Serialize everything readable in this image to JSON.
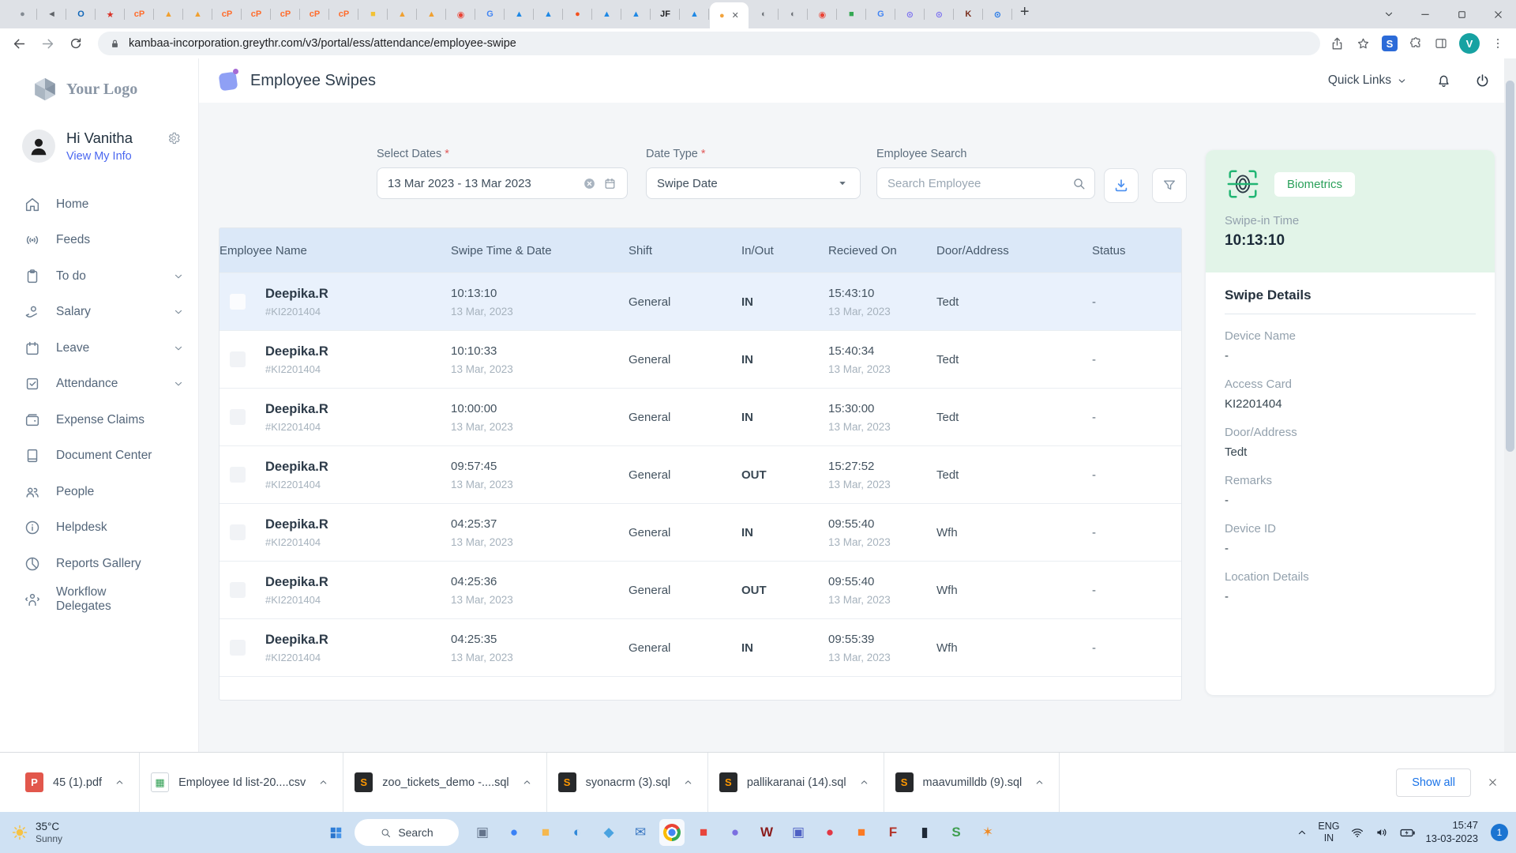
{
  "browser": {
    "url": "kambaa-incorporation.greythr.com/v3/portal/ess/attendance/employee-swipe",
    "avatar": "V",
    "new_tab": "+",
    "favicons_before": [
      {
        "n": "sphere-tab",
        "g": "●",
        "c": "#848b93"
      },
      {
        "n": "volume-tab",
        "g": "◄",
        "c": "#5f6368"
      },
      {
        "n": "outlook-tab",
        "g": "O",
        "c": "#1066b8"
      },
      {
        "n": "ticket-tab",
        "g": "★",
        "c": "#d93025"
      },
      {
        "n": "cpanel-tab",
        "g": "cP",
        "c": "#ff6c2c"
      },
      {
        "n": "phpmyadmin-tab",
        "g": "▲",
        "c": "#f0a030"
      },
      {
        "n": "phpmyadmin-tab",
        "g": "▲",
        "c": "#f0a030"
      },
      {
        "n": "cpanel-tab",
        "g": "cP",
        "c": "#ff6c2c"
      },
      {
        "n": "cpanel-tab",
        "g": "cP",
        "c": "#ff6c2c"
      },
      {
        "n": "cpanel-tab",
        "g": "cP",
        "c": "#ff6c2c"
      },
      {
        "n": "cpanel-tab",
        "g": "cP",
        "c": "#ff6c2c"
      },
      {
        "n": "cpanel-tab",
        "g": "cP",
        "c": "#ff6c2c"
      },
      {
        "n": "cube-tab",
        "g": "■",
        "c": "#f2c235"
      },
      {
        "n": "phpmyadmin-tab",
        "g": "▲",
        "c": "#f0a030"
      },
      {
        "n": "phpmyadmin-tab",
        "g": "▲",
        "c": "#f0a030"
      },
      {
        "n": "maps-tab",
        "g": "◉",
        "c": "#ea4335"
      },
      {
        "n": "google-tab",
        "g": "G",
        "c": "#4285f4"
      },
      {
        "n": "greythr-tab",
        "g": "▲",
        "c": "#1e88e5"
      },
      {
        "n": "greythr-tab",
        "g": "▲",
        "c": "#1e88e5"
      },
      {
        "n": "zoho-tab",
        "g": "●",
        "c": "#f4511e"
      },
      {
        "n": "greythr-tab",
        "g": "▲",
        "c": "#1e88e5"
      },
      {
        "n": "greythr-tab",
        "g": "▲",
        "c": "#1e88e5"
      },
      {
        "n": "jf-tab",
        "g": "JF",
        "c": "#202124"
      },
      {
        "n": "greythr-tab",
        "g": "▲",
        "c": "#1e88e5"
      }
    ],
    "active_tab_favicon": {
      "n": "greythr-active-tab",
      "g": "●",
      "c": "#f2a33c"
    },
    "active_tab_close": "✕",
    "favicons_after": [
      {
        "n": "globe-tab",
        "g": "◐",
        "c": "#6d7278"
      },
      {
        "n": "globe-tab",
        "g": "◐",
        "c": "#6d7278"
      },
      {
        "n": "maps-tab",
        "g": "◉",
        "c": "#ea4335"
      },
      {
        "n": "chat-tab",
        "g": "■",
        "c": "#34a853"
      },
      {
        "n": "google-tab",
        "g": "G",
        "c": "#4285f4"
      },
      {
        "n": "sync-tab",
        "g": "⊙",
        "c": "#7a6ff0"
      },
      {
        "n": "sync-tab",
        "g": "⊙",
        "c": "#7a6ff0"
      },
      {
        "n": "k-tab",
        "g": "K",
        "c": "#7a2e1d"
      },
      {
        "n": "clock-tab",
        "g": "⊙",
        "c": "#1a73e8"
      }
    ],
    "ext_badge": "S"
  },
  "header": {
    "title": "Employee Swipes",
    "quick_links": "Quick Links"
  },
  "sidebar": {
    "logo_text": "Your Logo",
    "greeting": "Hi Vanitha",
    "view_my_info": "View My Info",
    "items": [
      {
        "label": "Home",
        "icon": "home",
        "expandable": false
      },
      {
        "label": "Feeds",
        "icon": "feeds",
        "expandable": false
      },
      {
        "label": "To do",
        "icon": "todo",
        "expandable": true
      },
      {
        "label": "Salary",
        "icon": "salary",
        "expandable": true
      },
      {
        "label": "Leave",
        "icon": "leave",
        "expandable": true
      },
      {
        "label": "Attendance",
        "icon": "attendance",
        "expandable": true
      },
      {
        "label": "Expense Claims",
        "icon": "expense",
        "expandable": false
      },
      {
        "label": "Document Center",
        "icon": "document",
        "expandable": false
      },
      {
        "label": "People",
        "icon": "people",
        "expandable": false
      },
      {
        "label": "Helpdesk",
        "icon": "helpdesk",
        "expandable": false
      },
      {
        "label": "Reports Gallery",
        "icon": "reports",
        "expandable": false
      },
      {
        "label": "Workflow Delegates",
        "icon": "workflow",
        "expandable": false
      }
    ]
  },
  "filters": {
    "select_dates_label": "Select Dates",
    "select_dates_value": "13 Mar 2023 - 13 Mar 2023",
    "date_type_label": "Date Type",
    "date_type_value": "Swipe Date",
    "employee_search_label": "Employee Search",
    "employee_search_placeholder": "Search Employee",
    "required_mark": "*"
  },
  "table": {
    "columns": [
      "Employee Name",
      "Swipe Time & Date",
      "Shift",
      "In/Out",
      "Recieved On",
      "Door/Address",
      "Status"
    ],
    "rows": [
      {
        "name": "Deepika.R",
        "emp_id": "#KI2201404",
        "swipe_time": "10:13:10",
        "swipe_date": "13 Mar, 2023",
        "shift": "General",
        "in_out": "IN",
        "received_time": "15:43:10",
        "received_date": "13 Mar, 2023",
        "door": "Tedt",
        "status": "-",
        "highlighted": true
      },
      {
        "name": "Deepika.R",
        "emp_id": "#KI2201404",
        "swipe_time": "10:10:33",
        "swipe_date": "13 Mar, 2023",
        "shift": "General",
        "in_out": "IN",
        "received_time": "15:40:34",
        "received_date": "13 Mar, 2023",
        "door": "Tedt",
        "status": "-",
        "highlighted": false
      },
      {
        "name": "Deepika.R",
        "emp_id": "#KI2201404",
        "swipe_time": "10:00:00",
        "swipe_date": "13 Mar, 2023",
        "shift": "General",
        "in_out": "IN",
        "received_time": "15:30:00",
        "received_date": "13 Mar, 2023",
        "door": "Tedt",
        "status": "-",
        "highlighted": false
      },
      {
        "name": "Deepika.R",
        "emp_id": "#KI2201404",
        "swipe_time": "09:57:45",
        "swipe_date": "13 Mar, 2023",
        "shift": "General",
        "in_out": "OUT",
        "received_time": "15:27:52",
        "received_date": "13 Mar, 2023",
        "door": "Tedt",
        "status": "-",
        "highlighted": false
      },
      {
        "name": "Deepika.R",
        "emp_id": "#KI2201404",
        "swipe_time": "04:25:37",
        "swipe_date": "13 Mar, 2023",
        "shift": "General",
        "in_out": "IN",
        "received_time": "09:55:40",
        "received_date": "13 Mar, 2023",
        "door": "Wfh",
        "status": "-",
        "highlighted": false
      },
      {
        "name": "Deepika.R",
        "emp_id": "#KI2201404",
        "swipe_time": "04:25:36",
        "swipe_date": "13 Mar, 2023",
        "shift": "General",
        "in_out": "OUT",
        "received_time": "09:55:40",
        "received_date": "13 Mar, 2023",
        "door": "Wfh",
        "status": "-",
        "highlighted": false
      },
      {
        "name": "Deepika.R",
        "emp_id": "#KI2201404",
        "swipe_time": "04:25:35",
        "swipe_date": "13 Mar, 2023",
        "shift": "General",
        "in_out": "IN",
        "received_time": "09:55:39",
        "received_date": "13 Mar, 2023",
        "door": "Wfh",
        "status": "-",
        "highlighted": false
      }
    ]
  },
  "panel": {
    "badge": "Biometrics",
    "swipe_in_label": "Swipe-in Time",
    "swipe_in_value": "10:13:10",
    "details_title": "Swipe Details",
    "fields": [
      {
        "label": "Device Name",
        "value": "-"
      },
      {
        "label": "Access Card",
        "value": "KI2201404"
      },
      {
        "label": "Door/Address",
        "value": "Tedt"
      },
      {
        "label": "Remarks",
        "value": "-"
      },
      {
        "label": "Device ID",
        "value": "-"
      },
      {
        "label": "Location Details",
        "value": "-"
      }
    ]
  },
  "downloads": {
    "items": [
      {
        "name": "45 (1).pdf",
        "icon": "pdf",
        "g": "P"
      },
      {
        "name": "Employee Id list-20....csv",
        "icon": "csv",
        "g": "▦"
      },
      {
        "name": "zoo_tickets_demo -....sql",
        "icon": "sql",
        "g": "S"
      },
      {
        "name": "syonacrm (3).sql",
        "icon": "sql",
        "g": "S"
      },
      {
        "name": "pallikaranai (14).sql",
        "icon": "sql",
        "g": "S"
      },
      {
        "name": "maavumilldb (9).sql",
        "icon": "sql",
        "g": "S"
      }
    ],
    "show_all": "Show all"
  },
  "taskbar": {
    "temp": "35°C",
    "weather": "Sunny",
    "search": "Search",
    "apps": [
      {
        "n": "tray-app",
        "g": "▣",
        "c": "#64748b",
        "active": false
      },
      {
        "n": "chat-app",
        "g": "●",
        "c": "#3b82f6",
        "active": false
      },
      {
        "n": "file-explorer",
        "g": "■",
        "c": "#f5b84f",
        "active": false
      },
      {
        "n": "edge",
        "g": "◐",
        "c": "#2f88d8",
        "active": false
      },
      {
        "n": "store",
        "g": "◆",
        "c": "#4aa3e0",
        "active": false
      },
      {
        "n": "mail",
        "g": "✉",
        "c": "#3a77c2",
        "active": false
      },
      {
        "n": "chrome",
        "g": "●",
        "c": "#4285f4",
        "active": true
      },
      {
        "n": "adobe",
        "g": "■",
        "c": "#e8453c",
        "active": false
      },
      {
        "n": "skype",
        "g": "●",
        "c": "#7b6fe0",
        "active": false
      },
      {
        "n": "wamp",
        "g": "W",
        "c": "#8b1d1d",
        "active": false
      },
      {
        "n": "teams",
        "g": "▣",
        "c": "#4f61c4",
        "active": false
      },
      {
        "n": "zoho-cliq",
        "g": "●",
        "c": "#e23744",
        "active": false
      },
      {
        "n": "xampp",
        "g": "■",
        "c": "#fb7a24",
        "active": false
      },
      {
        "n": "filezilla",
        "g": "F",
        "c": "#b3342a",
        "active": false
      },
      {
        "n": "terminal",
        "g": "▮",
        "c": "#1f2937",
        "active": false
      },
      {
        "n": "editor",
        "g": "S",
        "c": "#3e9e4f",
        "active": false
      },
      {
        "n": "tools",
        "g": "✶",
        "c": "#f08a24",
        "active": false
      }
    ],
    "lang_top": "ENG",
    "lang_bottom": "IN",
    "time": "15:47",
    "date": "13-03-2023",
    "badge": "1"
  }
}
